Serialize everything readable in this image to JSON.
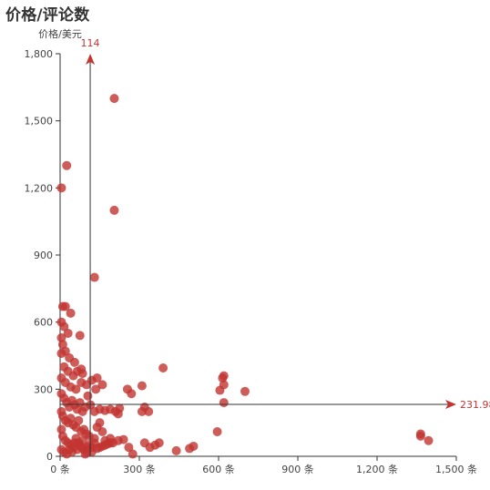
{
  "chart_data": {
    "type": "scatter",
    "title": "价格/评论数",
    "xlabel": "",
    "ylabel": "价格/美元",
    "xlim": [
      0,
      1500
    ],
    "ylim": [
      0,
      1800
    ],
    "x_ticks": [
      0,
      300,
      600,
      900,
      1200,
      1500
    ],
    "y_ticks": [
      0,
      300,
      600,
      900,
      1200,
      1500,
      1800
    ],
    "x_tick_labels": [
      "0 条",
      "300 条",
      "600 条",
      "900 条",
      "1,200 条",
      "1,500 条"
    ],
    "y_tick_labels": [
      "0",
      "300",
      "600",
      "900",
      "1,200",
      "1,500",
      "1,800"
    ],
    "grid": false,
    "legend": "none",
    "point_color": "#c23531",
    "mark_lines": [
      {
        "axis": "x",
        "value": 114,
        "label": "114"
      },
      {
        "axis": "y",
        "value": 231.98,
        "label": "231.98"
      }
    ],
    "points": [
      [
        5,
        1200
      ],
      [
        25,
        1300
      ],
      [
        205,
        1600
      ],
      [
        205,
        1100
      ],
      [
        130,
        800
      ],
      [
        10,
        670
      ],
      [
        20,
        670
      ],
      [
        40,
        640
      ],
      [
        5,
        600
      ],
      [
        15,
        580
      ],
      [
        30,
        550
      ],
      [
        75,
        540
      ],
      [
        5,
        530
      ],
      [
        10,
        500
      ],
      [
        20,
        470
      ],
      [
        35,
        440
      ],
      [
        55,
        420
      ],
      [
        5,
        460
      ],
      [
        15,
        400
      ],
      [
        30,
        380
      ],
      [
        50,
        360
      ],
      [
        65,
        380
      ],
      [
        80,
        390
      ],
      [
        85,
        370
      ],
      [
        5,
        350
      ],
      [
        20,
        330
      ],
      [
        40,
        310
      ],
      [
        60,
        300
      ],
      [
        80,
        330
      ],
      [
        100,
        320
      ],
      [
        120,
        340
      ],
      [
        140,
        350
      ],
      [
        160,
        320
      ],
      [
        135,
        300
      ],
      [
        5,
        280
      ],
      [
        15,
        260
      ],
      [
        25,
        240
      ],
      [
        35,
        220
      ],
      [
        45,
        250
      ],
      [
        55,
        230
      ],
      [
        65,
        210
      ],
      [
        75,
        240
      ],
      [
        85,
        200
      ],
      [
        95,
        220
      ],
      [
        105,
        270
      ],
      [
        115,
        230
      ],
      [
        130,
        200
      ],
      [
        150,
        210
      ],
      [
        170,
        205
      ],
      [
        190,
        210
      ],
      [
        210,
        200
      ],
      [
        220,
        190
      ],
      [
        225,
        215
      ],
      [
        5,
        200
      ],
      [
        10,
        180
      ],
      [
        20,
        160
      ],
      [
        30,
        150
      ],
      [
        40,
        170
      ],
      [
        50,
        140
      ],
      [
        60,
        130
      ],
      [
        70,
        160
      ],
      [
        80,
        110
      ],
      [
        90,
        120
      ],
      [
        100,
        100
      ],
      [
        110,
        90
      ],
      [
        130,
        80
      ],
      [
        140,
        130
      ],
      [
        150,
        150
      ],
      [
        160,
        110
      ],
      [
        170,
        70
      ],
      [
        190,
        80
      ],
      [
        200,
        60
      ],
      [
        220,
        70
      ],
      [
        5,
        120
      ],
      [
        10,
        90
      ],
      [
        20,
        70
      ],
      [
        30,
        60
      ],
      [
        40,
        50
      ],
      [
        50,
        40
      ],
      [
        60,
        80
      ],
      [
        70,
        60
      ],
      [
        80,
        40
      ],
      [
        90,
        30
      ],
      [
        100,
        20
      ],
      [
        110,
        50
      ],
      [
        120,
        40
      ],
      [
        130,
        60
      ],
      [
        150,
        40
      ],
      [
        170,
        50
      ],
      [
        190,
        60
      ],
      [
        5,
        30
      ],
      [
        15,
        20
      ],
      [
        25,
        10
      ],
      [
        35,
        30
      ],
      [
        45,
        20
      ],
      [
        55,
        60
      ],
      [
        65,
        30
      ],
      [
        75,
        50
      ],
      [
        85,
        70
      ],
      [
        95,
        10
      ],
      [
        105,
        40
      ],
      [
        120,
        20
      ],
      [
        140,
        35
      ],
      [
        160,
        45
      ],
      [
        180,
        55
      ],
      [
        255,
        300
      ],
      [
        270,
        280
      ],
      [
        310,
        315
      ],
      [
        320,
        220
      ],
      [
        310,
        200
      ],
      [
        335,
        200
      ],
      [
        390,
        395
      ],
      [
        240,
        75
      ],
      [
        260,
        40
      ],
      [
        275,
        10
      ],
      [
        320,
        60
      ],
      [
        340,
        40
      ],
      [
        360,
        50
      ],
      [
        375,
        60
      ],
      [
        440,
        25
      ],
      [
        490,
        35
      ],
      [
        505,
        45
      ],
      [
        595,
        110
      ],
      [
        605,
        295
      ],
      [
        615,
        350
      ],
      [
        620,
        360
      ],
      [
        620,
        320
      ],
      [
        620,
        240
      ],
      [
        700,
        290
      ],
      [
        1365,
        100
      ],
      [
        1365,
        90
      ],
      [
        1395,
        70
      ]
    ]
  }
}
